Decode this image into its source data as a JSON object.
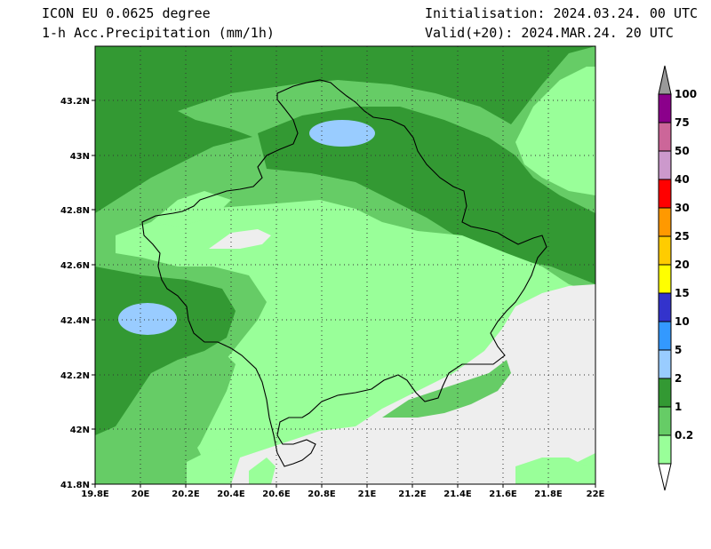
{
  "header": {
    "model": "ICON EU 0.0625 degree",
    "field": "1-h Acc.Precipitation (mm/1h)",
    "init": "Initialisation: 2024.03.24. 00 UTC",
    "valid": "Valid(+20): 2024.MAR.24. 20 UTC"
  },
  "axes": {
    "lon_labels": [
      "19.8E",
      "20E",
      "20.2E",
      "20.4E",
      "20.6E",
      "20.8E",
      "21E",
      "21.2E",
      "21.4E",
      "21.6E",
      "21.8E",
      "22E"
    ],
    "lat_labels": [
      "43.2N",
      "43N",
      "42.8N",
      "42.6N",
      "42.4N",
      "42.2N",
      "42N",
      "41.8N"
    ],
    "lon_range": [
      19.8,
      22.0
    ],
    "lat_range": [
      41.8,
      43.4
    ]
  },
  "legend": {
    "levels": [
      "100",
      "75",
      "50",
      "40",
      "30",
      "25",
      "20",
      "15",
      "10",
      "5",
      "2",
      "1",
      "0.2"
    ],
    "colors": [
      "#8b008b",
      "#cc6699",
      "#cc99cc",
      "#ff0000",
      "#ff9900",
      "#ffcc00",
      "#ffff00",
      "#3333cc",
      "#3399ff",
      "#99ccff",
      "#339933",
      "#66cc66",
      "#99ff99"
    ],
    "overflow_color": "#999999",
    "underflow_color": "#ffffff"
  },
  "map_colors": {
    "none": "#eeeeee",
    "p02_1": "#99ff99",
    "p1_2": "#66cc66",
    "p2_5": "#339933",
    "p5_10": "#99ccff",
    "border": "#000000"
  }
}
